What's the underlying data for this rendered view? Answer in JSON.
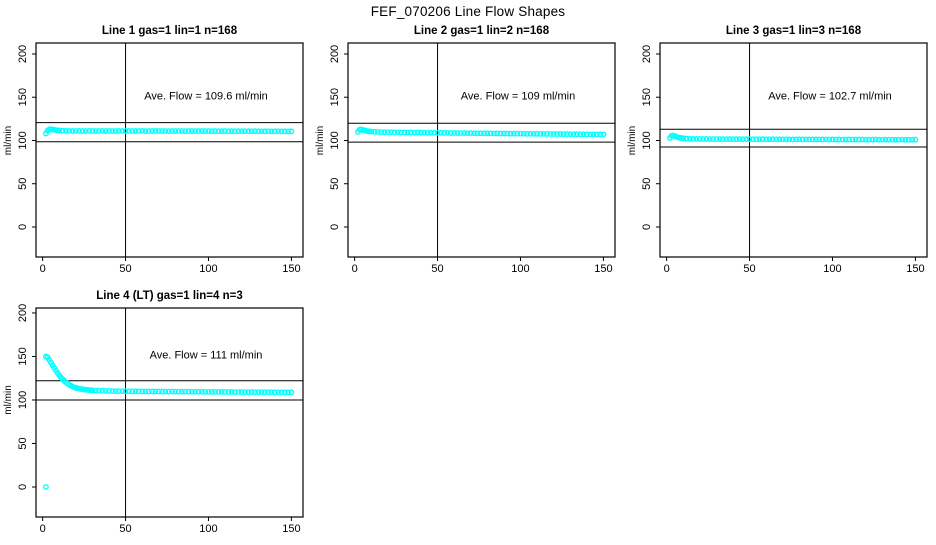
{
  "figure": {
    "title": "FEF_070206  Line Flow Shapes",
    "background": "#FFFFFF",
    "point_color": "#00FFFF",
    "line_color": "#000000"
  },
  "chart_data": [
    {
      "type": "scatter",
      "title": "Line 1 gas=1 lin=1 n=168",
      "annotation": "Ave. Flow =  109.6  ml/min",
      "ave_flow": 109.6,
      "xlabel": "",
      "ylabel": "ml/min",
      "x_ticks": [
        0,
        50,
        100,
        150
      ],
      "y_ticks": [
        0,
        50,
        100,
        150,
        200
      ],
      "ylim": [
        0,
        200
      ],
      "vline_x": 50,
      "hlines": [
        120.6,
        98.6
      ],
      "points": [
        [
          2,
          108
        ],
        [
          3,
          111.5
        ],
        [
          4,
          112.8
        ],
        [
          5,
          113
        ],
        [
          6,
          112.8
        ],
        [
          7,
          112.4
        ],
        [
          8,
          112
        ],
        [
          9,
          111.8
        ],
        [
          10,
          111.6
        ],
        [
          12,
          111.3
        ],
        [
          14,
          111.2
        ],
        [
          16,
          111.1
        ],
        [
          18,
          111
        ],
        [
          20,
          111
        ],
        [
          22,
          111.1
        ],
        [
          24,
          110.9
        ],
        [
          26,
          111
        ],
        [
          28,
          111.1
        ],
        [
          30,
          111
        ],
        [
          32,
          110.9
        ],
        [
          34,
          111
        ],
        [
          36,
          111.1
        ],
        [
          38,
          110.9
        ],
        [
          40,
          111
        ],
        [
          42,
          111
        ],
        [
          44,
          110.9
        ],
        [
          46,
          111.1
        ],
        [
          48,
          111
        ],
        [
          50,
          110.9
        ],
        [
          52,
          111
        ],
        [
          54,
          111
        ],
        [
          56,
          110.9
        ],
        [
          58,
          111
        ],
        [
          60,
          111.1
        ],
        [
          62,
          110.8
        ],
        [
          64,
          111
        ],
        [
          66,
          110.9
        ],
        [
          68,
          111
        ],
        [
          70,
          111
        ],
        [
          72,
          110.9
        ],
        [
          74,
          111
        ],
        [
          76,
          110.8
        ],
        [
          78,
          111
        ],
        [
          80,
          110.9
        ],
        [
          82,
          111
        ],
        [
          84,
          110.9
        ],
        [
          86,
          110.8
        ],
        [
          88,
          111
        ],
        [
          90,
          110.9
        ],
        [
          92,
          110.8
        ],
        [
          94,
          111
        ],
        [
          96,
          110.9
        ],
        [
          98,
          110.8
        ],
        [
          100,
          110.9
        ],
        [
          102,
          110.8
        ],
        [
          104,
          110.9
        ],
        [
          106,
          110.7
        ],
        [
          108,
          110.8
        ],
        [
          110,
          110.9
        ],
        [
          112,
          110.7
        ],
        [
          114,
          110.8
        ],
        [
          116,
          110.7
        ],
        [
          118,
          110.8
        ],
        [
          120,
          110.7
        ],
        [
          122,
          110.8
        ],
        [
          124,
          110.6
        ],
        [
          126,
          110.7
        ],
        [
          128,
          110.8
        ],
        [
          130,
          110.6
        ],
        [
          132,
          110.7
        ],
        [
          134,
          110.6
        ],
        [
          136,
          110.7
        ],
        [
          138,
          110.5
        ],
        [
          140,
          110.6
        ],
        [
          142,
          110.7
        ],
        [
          144,
          110.5
        ],
        [
          146,
          110.6
        ],
        [
          148,
          110.5
        ],
        [
          150,
          110.6
        ]
      ]
    },
    {
      "type": "scatter",
      "title": "Line 2 gas=1 lin=2 n=168",
      "annotation": "Ave. Flow =  109  ml/min",
      "ave_flow": 109,
      "xlabel": "",
      "ylabel": "ml/min",
      "x_ticks": [
        0,
        50,
        100,
        150
      ],
      "y_ticks": [
        0,
        50,
        100,
        150,
        200
      ],
      "ylim": [
        0,
        200
      ],
      "vline_x": 50,
      "hlines": [
        119.9,
        98.1
      ],
      "points": [
        [
          2,
          110
        ],
        [
          3,
          112.5
        ],
        [
          4,
          112.8
        ],
        [
          5,
          112.2
        ],
        [
          6,
          111.6
        ],
        [
          7,
          111.2
        ],
        [
          8,
          110.8
        ],
        [
          9,
          110.5
        ],
        [
          10,
          110.3
        ],
        [
          12,
          110
        ],
        [
          14,
          109.8
        ],
        [
          16,
          109.7
        ],
        [
          18,
          109.6
        ],
        [
          20,
          109.5
        ],
        [
          22,
          109.6
        ],
        [
          24,
          109.4
        ],
        [
          26,
          109.5
        ],
        [
          28,
          109.3
        ],
        [
          30,
          109.4
        ],
        [
          32,
          109.2
        ],
        [
          34,
          109.3
        ],
        [
          36,
          109.1
        ],
        [
          38,
          109.2
        ],
        [
          40,
          109
        ],
        [
          42,
          109.1
        ],
        [
          44,
          108.9
        ],
        [
          46,
          109
        ],
        [
          48,
          108.9
        ],
        [
          50,
          108.8
        ],
        [
          52,
          108.9
        ],
        [
          54,
          108.7
        ],
        [
          56,
          108.8
        ],
        [
          58,
          108.6
        ],
        [
          60,
          108.7
        ],
        [
          62,
          108.6
        ],
        [
          64,
          108.5
        ],
        [
          66,
          108.6
        ],
        [
          68,
          108.4
        ],
        [
          70,
          108.5
        ],
        [
          72,
          108.4
        ],
        [
          74,
          108.3
        ],
        [
          76,
          108.4
        ],
        [
          78,
          108.2
        ],
        [
          80,
          108.3
        ],
        [
          82,
          108.2
        ],
        [
          84,
          108.1
        ],
        [
          86,
          108.2
        ],
        [
          88,
          108
        ],
        [
          90,
          108.1
        ],
        [
          92,
          108
        ],
        [
          94,
          107.9
        ],
        [
          96,
          108
        ],
        [
          98,
          107.8
        ],
        [
          100,
          107.9
        ],
        [
          102,
          107.8
        ],
        [
          104,
          107.7
        ],
        [
          106,
          107.8
        ],
        [
          108,
          107.6
        ],
        [
          110,
          107.7
        ],
        [
          112,
          107.6
        ],
        [
          114,
          107.5
        ],
        [
          116,
          107.6
        ],
        [
          118,
          107.5
        ],
        [
          120,
          107.4
        ],
        [
          122,
          107.5
        ],
        [
          124,
          107.4
        ],
        [
          126,
          107.3
        ],
        [
          128,
          107.4
        ],
        [
          130,
          107.3
        ],
        [
          132,
          107.2
        ],
        [
          134,
          107.3
        ],
        [
          136,
          107.2
        ],
        [
          138,
          107.1
        ],
        [
          140,
          107.2
        ],
        [
          142,
          107.1
        ],
        [
          144,
          107
        ],
        [
          146,
          107.1
        ],
        [
          148,
          107
        ],
        [
          150,
          107.1
        ]
      ]
    },
    {
      "type": "scatter",
      "title": "Line 3 gas=1 lin=3 n=168",
      "annotation": "Ave. Flow =  102.7  ml/min",
      "ave_flow": 102.7,
      "xlabel": "",
      "ylabel": "ml/min",
      "x_ticks": [
        0,
        50,
        100,
        150
      ],
      "y_ticks": [
        0,
        50,
        100,
        150,
        200
      ],
      "ylim": [
        0,
        200
      ],
      "vline_x": 50,
      "hlines": [
        113.0,
        92.4
      ],
      "points": [
        [
          2,
          103
        ],
        [
          3,
          105.5
        ],
        [
          4,
          105.8
        ],
        [
          5,
          105
        ],
        [
          6,
          104.2
        ],
        [
          7,
          103.6
        ],
        [
          8,
          103.1
        ],
        [
          9,
          102.8
        ],
        [
          10,
          102.5
        ],
        [
          12,
          102.2
        ],
        [
          14,
          102
        ],
        [
          16,
          101.9
        ],
        [
          18,
          101.8
        ],
        [
          20,
          101.8
        ],
        [
          22,
          101.7
        ],
        [
          24,
          101.8
        ],
        [
          26,
          101.6
        ],
        [
          28,
          101.7
        ],
        [
          30,
          101.6
        ],
        [
          32,
          101.7
        ],
        [
          34,
          101.5
        ],
        [
          36,
          101.6
        ],
        [
          38,
          101.5
        ],
        [
          40,
          101.6
        ],
        [
          42,
          101.5
        ],
        [
          44,
          101.6
        ],
        [
          46,
          101.4
        ],
        [
          48,
          101.5
        ],
        [
          50,
          101.5
        ],
        [
          52,
          101.4
        ],
        [
          54,
          101.5
        ],
        [
          56,
          101.4
        ],
        [
          58,
          101.5
        ],
        [
          60,
          101.3
        ],
        [
          62,
          101.4
        ],
        [
          64,
          101.5
        ],
        [
          66,
          101.3
        ],
        [
          68,
          101.4
        ],
        [
          70,
          101.3
        ],
        [
          72,
          101.4
        ],
        [
          74,
          101.3
        ],
        [
          76,
          101.2
        ],
        [
          78,
          101.3
        ],
        [
          80,
          101.4
        ],
        [
          82,
          101.2
        ],
        [
          84,
          101.3
        ],
        [
          86,
          101.2
        ],
        [
          88,
          101.3
        ],
        [
          90,
          101.2
        ],
        [
          92,
          101.1
        ],
        [
          94,
          101.2
        ],
        [
          96,
          101.3
        ],
        [
          98,
          101.1
        ],
        [
          100,
          101.2
        ],
        [
          102,
          101.1
        ],
        [
          104,
          101.2
        ],
        [
          106,
          101
        ],
        [
          108,
          101.1
        ],
        [
          110,
          101.2
        ],
        [
          112,
          101
        ],
        [
          114,
          101.1
        ],
        [
          116,
          101
        ],
        [
          118,
          101.1
        ],
        [
          120,
          101
        ],
        [
          122,
          100.9
        ],
        [
          124,
          101
        ],
        [
          126,
          101.1
        ],
        [
          128,
          100.9
        ],
        [
          130,
          101
        ],
        [
          132,
          100.9
        ],
        [
          134,
          101
        ],
        [
          136,
          100.9
        ],
        [
          138,
          100.8
        ],
        [
          140,
          100.9
        ],
        [
          142,
          101
        ],
        [
          144,
          100.8
        ],
        [
          146,
          100.9
        ],
        [
          148,
          100.8
        ],
        [
          150,
          100.9
        ]
      ]
    },
    {
      "type": "scatter",
      "title": "Line 4 (LT) gas=1 lin=4 n=3",
      "annotation": "Ave. Flow =  111  ml/min",
      "ave_flow": 111,
      "xlabel": "",
      "ylabel": "ml/min",
      "x_ticks": [
        0,
        50,
        100,
        150
      ],
      "y_ticks": [
        0,
        50,
        100,
        150,
        200
      ],
      "ylim": [
        0,
        200
      ],
      "vline_x": 50,
      "hlines": [
        122.1,
        99.9
      ],
      "points": [
        [
          2,
          0
        ],
        [
          2,
          150
        ],
        [
          3,
          149
        ],
        [
          4,
          146
        ],
        [
          5,
          143
        ],
        [
          6,
          140
        ],
        [
          7,
          137
        ],
        [
          8,
          134
        ],
        [
          9,
          131
        ],
        [
          10,
          128.5
        ],
        [
          11,
          126
        ],
        [
          12,
          124
        ],
        [
          13,
          122
        ],
        [
          14,
          120.5
        ],
        [
          15,
          119
        ],
        [
          16,
          117.5
        ],
        [
          17,
          116.5
        ],
        [
          18,
          115.5
        ],
        [
          19,
          114.5
        ],
        [
          20,
          114
        ],
        [
          21,
          113.5
        ],
        [
          22,
          113
        ],
        [
          23,
          112.6
        ],
        [
          24,
          112.3
        ],
        [
          25,
          112
        ],
        [
          26,
          111.8
        ],
        [
          27,
          111.6
        ],
        [
          28,
          111.4
        ],
        [
          29,
          111.2
        ],
        [
          30,
          111
        ],
        [
          32,
          110.8
        ],
        [
          34,
          110.6
        ],
        [
          36,
          110.5
        ],
        [
          38,
          110.4
        ],
        [
          40,
          110.3
        ],
        [
          42,
          110.2
        ],
        [
          44,
          110.2
        ],
        [
          46,
          110.1
        ],
        [
          48,
          110.1
        ],
        [
          50,
          110
        ],
        [
          52,
          110
        ],
        [
          54,
          109.9
        ],
        [
          56,
          110
        ],
        [
          58,
          109.9
        ],
        [
          60,
          109.8
        ],
        [
          62,
          109.9
        ],
        [
          64,
          109.8
        ],
        [
          66,
          109.8
        ],
        [
          68,
          109.7
        ],
        [
          70,
          109.8
        ],
        [
          72,
          109.7
        ],
        [
          74,
          109.7
        ],
        [
          76,
          109.6
        ],
        [
          78,
          109.7
        ],
        [
          80,
          109.6
        ],
        [
          82,
          109.6
        ],
        [
          84,
          109.5
        ],
        [
          86,
          109.6
        ],
        [
          88,
          109.5
        ],
        [
          90,
          109.5
        ],
        [
          92,
          109.4
        ],
        [
          94,
          109.5
        ],
        [
          96,
          109.4
        ],
        [
          98,
          109.4
        ],
        [
          100,
          109.3
        ],
        [
          102,
          109.4
        ],
        [
          104,
          109.3
        ],
        [
          106,
          109.3
        ],
        [
          108,
          109.2
        ],
        [
          110,
          109.3
        ],
        [
          112,
          109.2
        ],
        [
          114,
          109.2
        ],
        [
          116,
          109.1
        ],
        [
          118,
          109.2
        ],
        [
          120,
          109.1
        ],
        [
          122,
          109.1
        ],
        [
          124,
          109
        ],
        [
          126,
          109.1
        ],
        [
          128,
          109
        ],
        [
          130,
          109
        ],
        [
          132,
          108.9
        ],
        [
          134,
          109
        ],
        [
          136,
          108.9
        ],
        [
          138,
          108.9
        ],
        [
          140,
          108.8
        ],
        [
          142,
          108.9
        ],
        [
          144,
          108.8
        ],
        [
          146,
          108.8
        ],
        [
          148,
          108.7
        ],
        [
          150,
          108.8
        ]
      ]
    }
  ]
}
